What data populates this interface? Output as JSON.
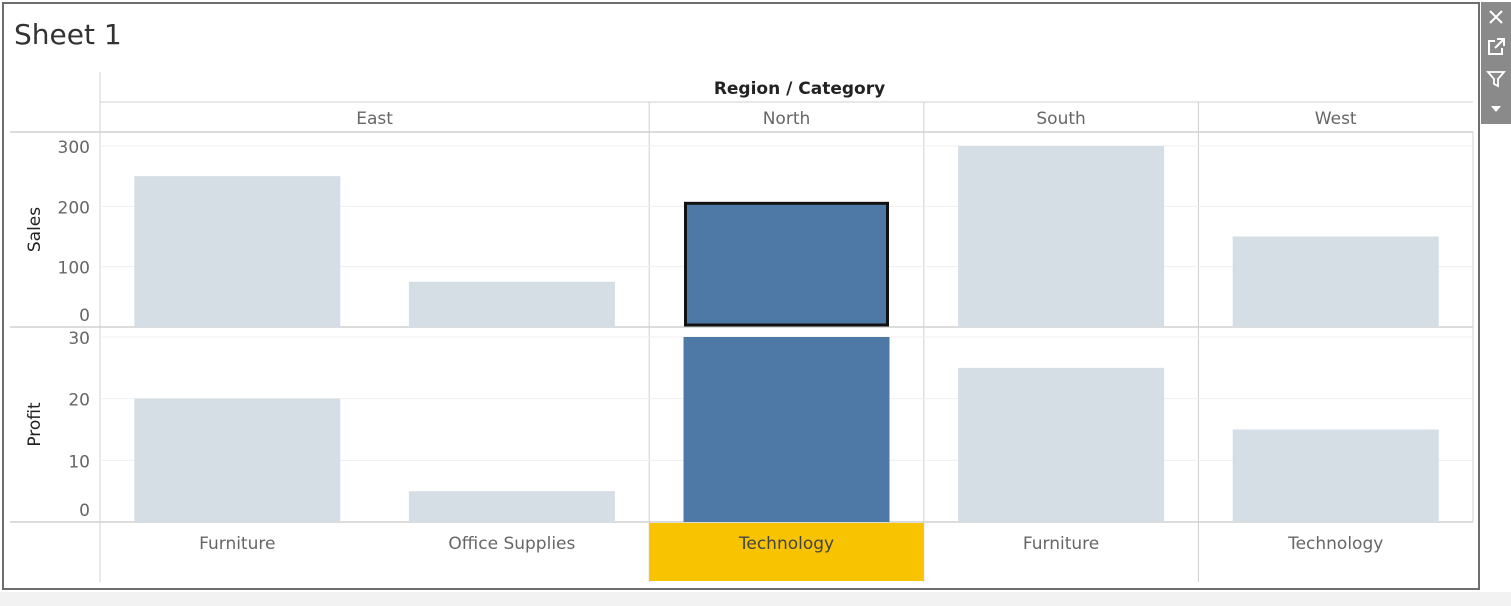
{
  "sheet": {
    "title": "Sheet 1"
  },
  "toolbar": {
    "items": [
      {
        "name": "close-icon"
      },
      {
        "name": "pop-out-icon"
      },
      {
        "name": "filter-icon"
      },
      {
        "name": "dropdown-arrow-icon"
      }
    ]
  },
  "colors": {
    "selected": "#4e78a6",
    "unselected": "#d5dde5",
    "highlight_label": "#f8c300",
    "grid": "#d0d0d0"
  },
  "chart_data": {
    "type": "bar",
    "header_title": "Region / Category",
    "columns": [
      {
        "region": "East",
        "category": "Furniture",
        "selected": false
      },
      {
        "region": "East",
        "category": "Office Supplies",
        "selected": false
      },
      {
        "region": "North",
        "category": "Technology",
        "selected": true
      },
      {
        "region": "South",
        "category": "Furniture",
        "selected": false
      },
      {
        "region": "West",
        "category": "Technology",
        "selected": false
      }
    ],
    "regions": [
      "East",
      "North",
      "South",
      "West"
    ],
    "series": [
      {
        "name": "Sales",
        "values": [
          250,
          75,
          205,
          300,
          150
        ],
        "yticks": [
          0,
          100,
          200,
          300
        ],
        "ylim": [
          0,
          300
        ]
      },
      {
        "name": "Profit",
        "values": [
          20,
          5,
          30,
          25,
          15
        ],
        "yticks": [
          0,
          10,
          20,
          30
        ],
        "ylim": [
          0,
          30
        ]
      }
    ]
  }
}
